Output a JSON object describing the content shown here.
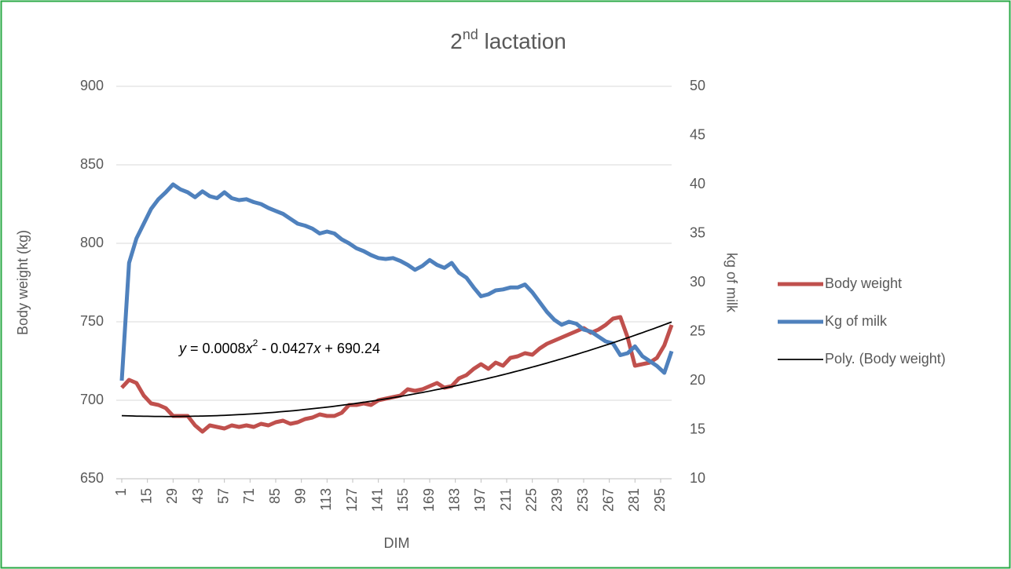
{
  "chart_data": {
    "type": "line",
    "title": {
      "base": "2",
      "sup": "nd",
      "rest": " lactation"
    },
    "x_label": "DIM",
    "y_label": "Body weight (kg)",
    "y2_label": "kg of milk",
    "x": [
      1,
      5,
      9,
      13,
      17,
      21,
      25,
      29,
      33,
      37,
      41,
      45,
      49,
      53,
      57,
      61,
      65,
      69,
      73,
      77,
      81,
      85,
      89,
      93,
      97,
      101,
      105,
      109,
      113,
      117,
      121,
      125,
      129,
      133,
      137,
      141,
      145,
      149,
      153,
      157,
      161,
      165,
      169,
      173,
      177,
      181,
      185,
      189,
      193,
      197,
      201,
      205,
      209,
      213,
      217,
      221,
      225,
      229,
      233,
      237,
      241,
      245,
      249,
      253,
      257,
      261,
      265,
      269,
      273,
      277,
      281,
      285,
      289,
      293,
      297,
      301
    ],
    "xlim": [
      1,
      301
    ],
    "xticks": [
      1,
      15,
      29,
      43,
      57,
      71,
      85,
      99,
      113,
      127,
      141,
      155,
      169,
      183,
      197,
      211,
      225,
      239,
      253,
      267,
      281,
      295
    ],
    "ylim": [
      650,
      900
    ],
    "yticks": [
      650,
      700,
      750,
      800,
      850,
      900
    ],
    "y2lim": [
      10,
      50
    ],
    "y2ticks": [
      10,
      15,
      20,
      25,
      30,
      35,
      40,
      45,
      50
    ],
    "grid": true,
    "legend": "right",
    "series": [
      {
        "name": "Body weight",
        "color": "#c0504d",
        "values": [
          708,
          713,
          711,
          703,
          698,
          697,
          695,
          690,
          690,
          690,
          684,
          680,
          684,
          683,
          682,
          684,
          683,
          684,
          683,
          685,
          684,
          686,
          687,
          685,
          686,
          688,
          689,
          691,
          690,
          690,
          692,
          697,
          697,
          698,
          697,
          700,
          701,
          702,
          703,
          707,
          706,
          707,
          709,
          711,
          708,
          709,
          714,
          716,
          720,
          723,
          720,
          724,
          722,
          727,
          728,
          730,
          729,
          733,
          736,
          738,
          740,
          742,
          744,
          746,
          743,
          745,
          748,
          752,
          753,
          740,
          722,
          723,
          724,
          727,
          735,
          748
        ]
      },
      {
        "name": "Kg of milk",
        "color": "#4f81bd",
        "axis": "y2",
        "values": [
          20,
          32,
          34.5,
          36,
          37.5,
          38.5,
          39.2,
          40,
          39.5,
          39.2,
          38.7,
          39.3,
          38.8,
          38.6,
          39.2,
          38.6,
          38.4,
          38.5,
          38.2,
          38,
          37.6,
          37.3,
          37,
          36.5,
          36,
          35.8,
          35.5,
          35,
          35.2,
          35,
          34.4,
          34,
          33.5,
          33.2,
          32.8,
          32.5,
          32.4,
          32.5,
          32.2,
          31.8,
          31.3,
          31.7,
          32.3,
          31.8,
          31.5,
          32,
          31,
          30.5,
          29.5,
          28.6,
          28.8,
          29.2,
          29.3,
          29.5,
          29.5,
          29.8,
          29,
          28,
          27,
          26.2,
          25.7,
          26,
          25.8,
          25.2,
          25,
          24.5,
          24,
          23.8,
          22.6,
          22.8,
          23.5,
          22.5,
          22,
          21.5,
          20.8,
          23
        ]
      }
    ],
    "trendline": {
      "name": "Poly. (Body weight)",
      "color": "#000000",
      "coefficients": [
        0.0008,
        -0.0427,
        690.24
      ],
      "equation": [
        "y",
        " = 0.0008",
        "x",
        "2",
        " - 0.0427",
        "x",
        " + 690.24"
      ]
    }
  }
}
